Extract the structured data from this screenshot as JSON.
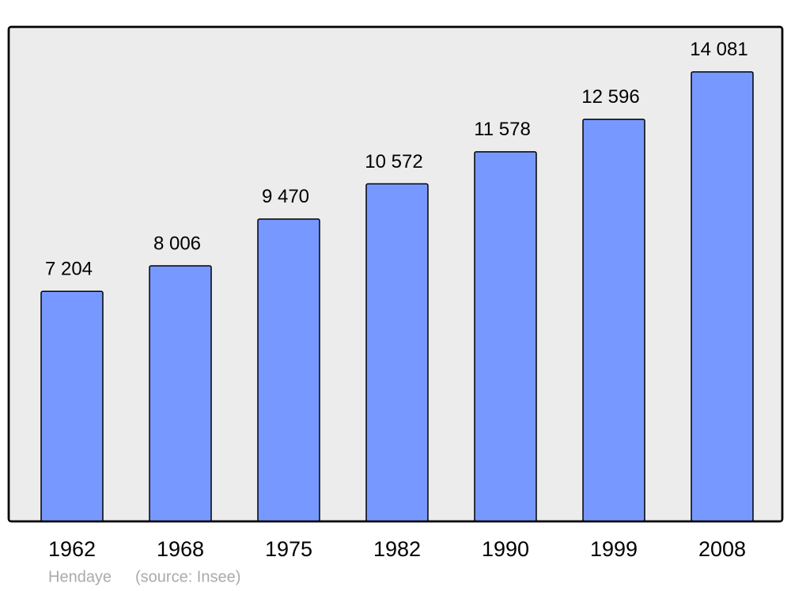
{
  "chart_data": {
    "type": "bar",
    "categories": [
      "1962",
      "1968",
      "1975",
      "1982",
      "1990",
      "1999",
      "2008"
    ],
    "values": [
      7204,
      8006,
      9470,
      10572,
      11578,
      12596,
      14081
    ],
    "value_labels": [
      "7 204",
      "8 006",
      "9 470",
      "10 572",
      "11 578",
      "12 596",
      "14 081"
    ],
    "color": "#7799ff",
    "footer": {
      "place": "Hendaye",
      "source": "(source: Insee)"
    }
  }
}
